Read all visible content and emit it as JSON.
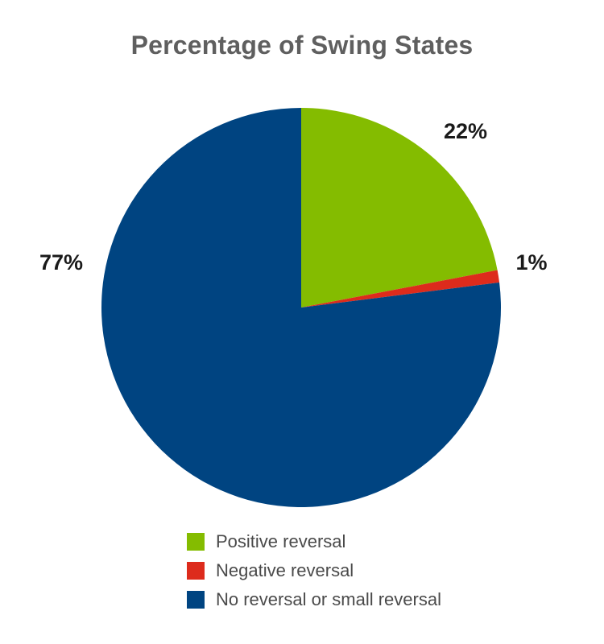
{
  "title": "Percentage of Swing States",
  "chart_data": {
    "type": "pie",
    "title": "Percentage of Swing States",
    "slices": [
      {
        "name": "Positive reversal",
        "value": 22,
        "label": "22%",
        "color": "#84bc00"
      },
      {
        "name": "Negative reversal",
        "value": 1,
        "label": "1%",
        "color": "#dd2b1c"
      },
      {
        "name": "No reversal or small reversal",
        "value": 77,
        "label": "77%",
        "color": "#004481"
      }
    ],
    "legend": {
      "position": "bottom",
      "entries": [
        "Positive reversal",
        "Negative reversal",
        "No reversal or small reversal"
      ]
    }
  }
}
